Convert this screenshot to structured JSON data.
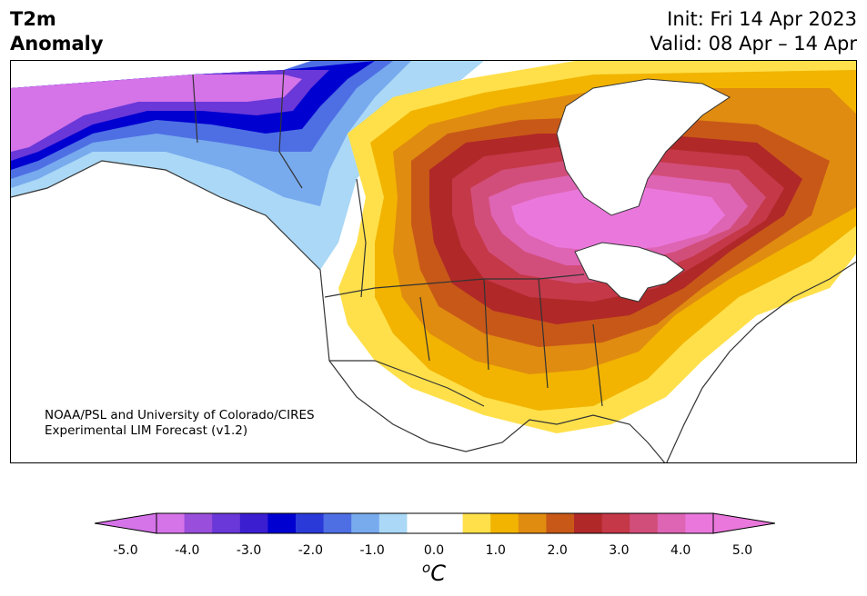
{
  "title": {
    "line1": "T2m",
    "line2": "Anomaly"
  },
  "init": {
    "line1": "Init: Fri 14 Apr 2023",
    "line2": "Valid: 08 Apr – 14 Apr"
  },
  "credit": {
    "line1": "NOAA/PSL and University of Colorado/CIRES",
    "line2": "Experimental LIM Forecast (v1.2)"
  },
  "colorbar": {
    "ticks": [
      "-5.0",
      "-4.0",
      "-3.0",
      "-2.0",
      "-1.0",
      "0.0",
      "1.0",
      "2.0",
      "3.0",
      "4.0",
      "5.0"
    ],
    "colors": [
      "#d573e8",
      "#9a4fdc",
      "#6a38d8",
      "#3a1ed0",
      "#0000d0",
      "#2a3ad8",
      "#4e6fe4",
      "#78aaee",
      "#aad8f6",
      "#ffffff",
      "#ffffff",
      "#ffe04a",
      "#f2b400",
      "#e08c10",
      "#c85818",
      "#b02828",
      "#c43848",
      "#d24e7a",
      "#de64b4",
      "#ea78dc"
    ],
    "min_color": "#d573e8",
    "max_color": "#ea78dc",
    "units": "C",
    "units_prefix": "o"
  },
  "map": {
    "region": "North America",
    "variable": "2m temperature anomaly",
    "land_color": "#ffffff",
    "coast_color": "#333333"
  }
}
